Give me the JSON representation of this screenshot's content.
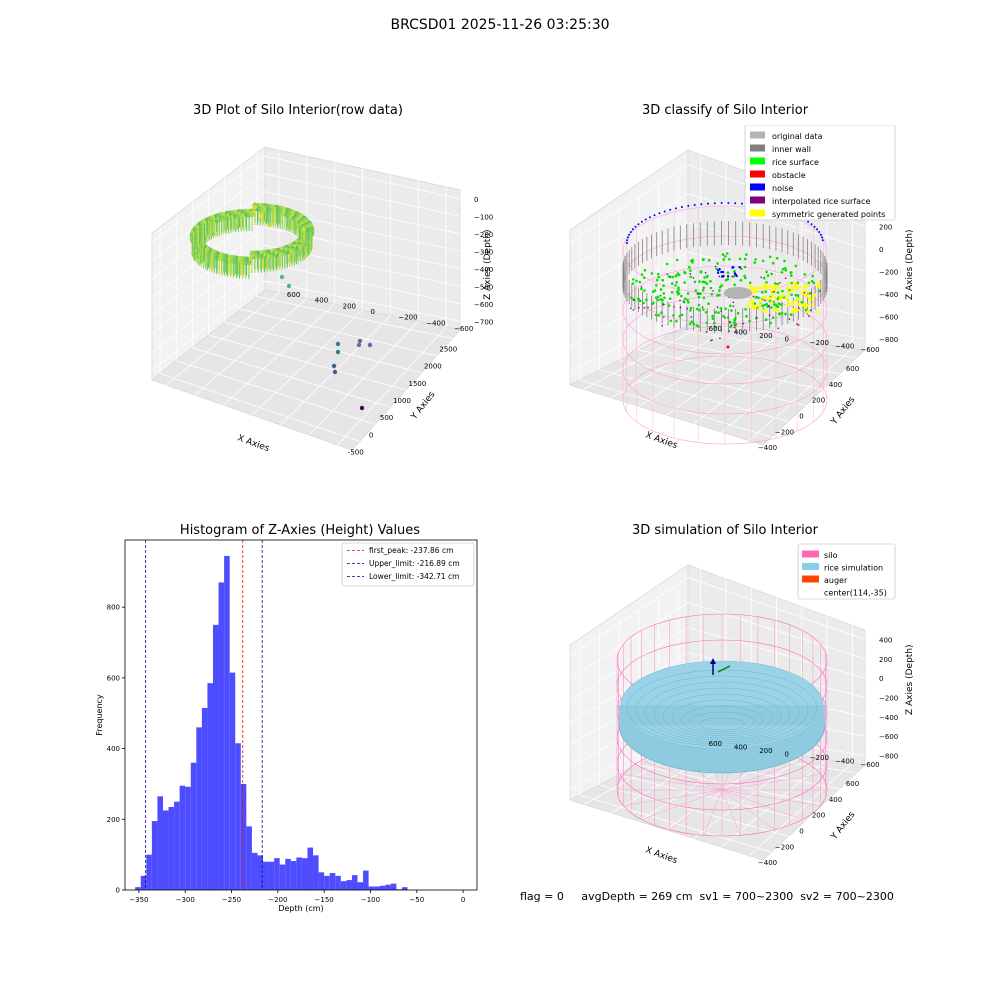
{
  "figure": {
    "suptitle": "BRCSD01 2025-11-26 03:25:30"
  },
  "panel1": {
    "title": "3D Plot of Silo Interior(row data)",
    "xlabel": "X Axies",
    "ylabel": "Y Axies",
    "zlabel": "Z Axies (Depth)",
    "xticks": [
      "-500",
      "0",
      "500",
      "1000",
      "1500",
      "2000",
      "2500"
    ],
    "yticks": [
      "600",
      "400",
      "200",
      "0",
      "−200",
      "−400",
      "−600"
    ],
    "zticks": [
      "0",
      "−100",
      "−200",
      "−300",
      "−400",
      "−500",
      "−600",
      "−700"
    ]
  },
  "panel2": {
    "title": "3D classify of Silo Interior",
    "xlabel": "X Axies",
    "ylabel": "Y Axies",
    "zlabel": "Z Axies (Depth)",
    "xticks": [
      "−400",
      "−200",
      "0",
      "200",
      "400",
      "600"
    ],
    "yticks": [
      "600",
      "400",
      "200",
      "0",
      "−200",
      "−400",
      "−600"
    ],
    "zticks": [
      "200",
      "0",
      "−200",
      "−400",
      "−600",
      "−800"
    ],
    "legend": [
      {
        "label": "original data",
        "color": "#b3b3b3"
      },
      {
        "label": "inner wall",
        "color": "#808080"
      },
      {
        "label": "rice surface",
        "color": "#00ff00"
      },
      {
        "label": "obstacle",
        "color": "#ff0000"
      },
      {
        "label": "noise",
        "color": "#0000ff"
      },
      {
        "label": "interpolated rice surface",
        "color": "#800080"
      },
      {
        "label": "symmetric generated points",
        "color": "#ffff00"
      }
    ]
  },
  "panel4": {
    "title": "3D simulation of Silo Interior",
    "xlabel": "X Axies",
    "ylabel": "Y Axies",
    "zlabel": "Z Axies (Depth)",
    "xticks": [
      "−400",
      "−200",
      "0",
      "200",
      "400",
      "600"
    ],
    "yticks": [
      "600",
      "400",
      "200",
      "0",
      "−200",
      "−400",
      "−600"
    ],
    "zticks": [
      "400",
      "200",
      "0",
      "−200",
      "−400",
      "−600",
      "−800"
    ],
    "legend": [
      {
        "label": "silo",
        "color": "#ff69b4"
      },
      {
        "label": "rice simulation",
        "color": "#87ceeb"
      },
      {
        "label": "auger",
        "color": "#ff4500"
      },
      {
        "label": "center(114,-35)",
        "color": ""
      }
    ]
  },
  "footer": {
    "text": "flag = 0     avgDepth = 269 cm  sv1 = 700~2300  sv2 = 700~2300"
  },
  "chart_data": [
    {
      "type": "scatter",
      "title": "3D Plot of Silo Interior(row data)",
      "xlabel": "X Axies",
      "ylabel": "Y Axies",
      "zlabel": "Z Axies (Depth)",
      "xlim": [
        -600,
        2700
      ],
      "ylim": [
        -650,
        650
      ],
      "zlim": [
        -780,
        40
      ]
    },
    {
      "type": "scatter",
      "title": "3D classify of Silo Interior",
      "xlabel": "X Axies",
      "ylabel": "Y Axies",
      "zlabel": "Z Axies (Depth)",
      "xlim": [
        -500,
        700
      ],
      "ylim": [
        -650,
        650
      ],
      "zlim": [
        -900,
        250
      ],
      "series": [
        {
          "name": "original data"
        },
        {
          "name": "inner wall"
        },
        {
          "name": "rice surface"
        },
        {
          "name": "obstacle"
        },
        {
          "name": "noise"
        },
        {
          "name": "interpolated rice surface"
        },
        {
          "name": "symmetric generated points"
        }
      ]
    },
    {
      "type": "bar",
      "title": "Histogram of Z-Axies (Height) Values",
      "xlabel": "Depth (cm)",
      "ylabel": "Frequency",
      "xlim": [
        -365,
        15
      ],
      "ylim": [
        0,
        990
      ],
      "xticks": [
        -350,
        -300,
        -250,
        -200,
        -150,
        -100,
        -50,
        0
      ],
      "yticks": [
        0,
        200,
        400,
        600,
        800
      ],
      "bin_width": 6,
      "bin_start": -354,
      "values": [
        8,
        40,
        100,
        195,
        265,
        225,
        235,
        250,
        295,
        292,
        360,
        460,
        515,
        585,
        750,
        870,
        945,
        615,
        415,
        300,
        180,
        105,
        98,
        80,
        80,
        90,
        72,
        88,
        82,
        92,
        90,
        120,
        98,
        50,
        40,
        48,
        40,
        25,
        28,
        42,
        22,
        55,
        10,
        10,
        12,
        15,
        18,
        2,
        8
      ],
      "vlines": [
        {
          "label": "first_peak: -237.86 cm",
          "x": -237.86,
          "color": "#ff0000"
        },
        {
          "label": "Upper_limit: -216.89 cm",
          "x": -216.89,
          "color": "#0000aa"
        },
        {
          "label": "Lower_limit: -342.71 cm",
          "x": -342.71,
          "color": "#0000aa"
        }
      ]
    },
    {
      "type": "scatter",
      "title": "3D simulation of Silo Interior",
      "xlabel": "X Axies",
      "ylabel": "Y Axies",
      "zlabel": "Z Axies (Depth)",
      "xlim": [
        -550,
        750
      ],
      "ylim": [
        -650,
        650
      ],
      "zlim": [
        -900,
        450
      ],
      "series": [
        {
          "name": "silo"
        },
        {
          "name": "rice simulation"
        },
        {
          "name": "auger"
        },
        {
          "name": "center(114,-35)"
        }
      ]
    }
  ]
}
